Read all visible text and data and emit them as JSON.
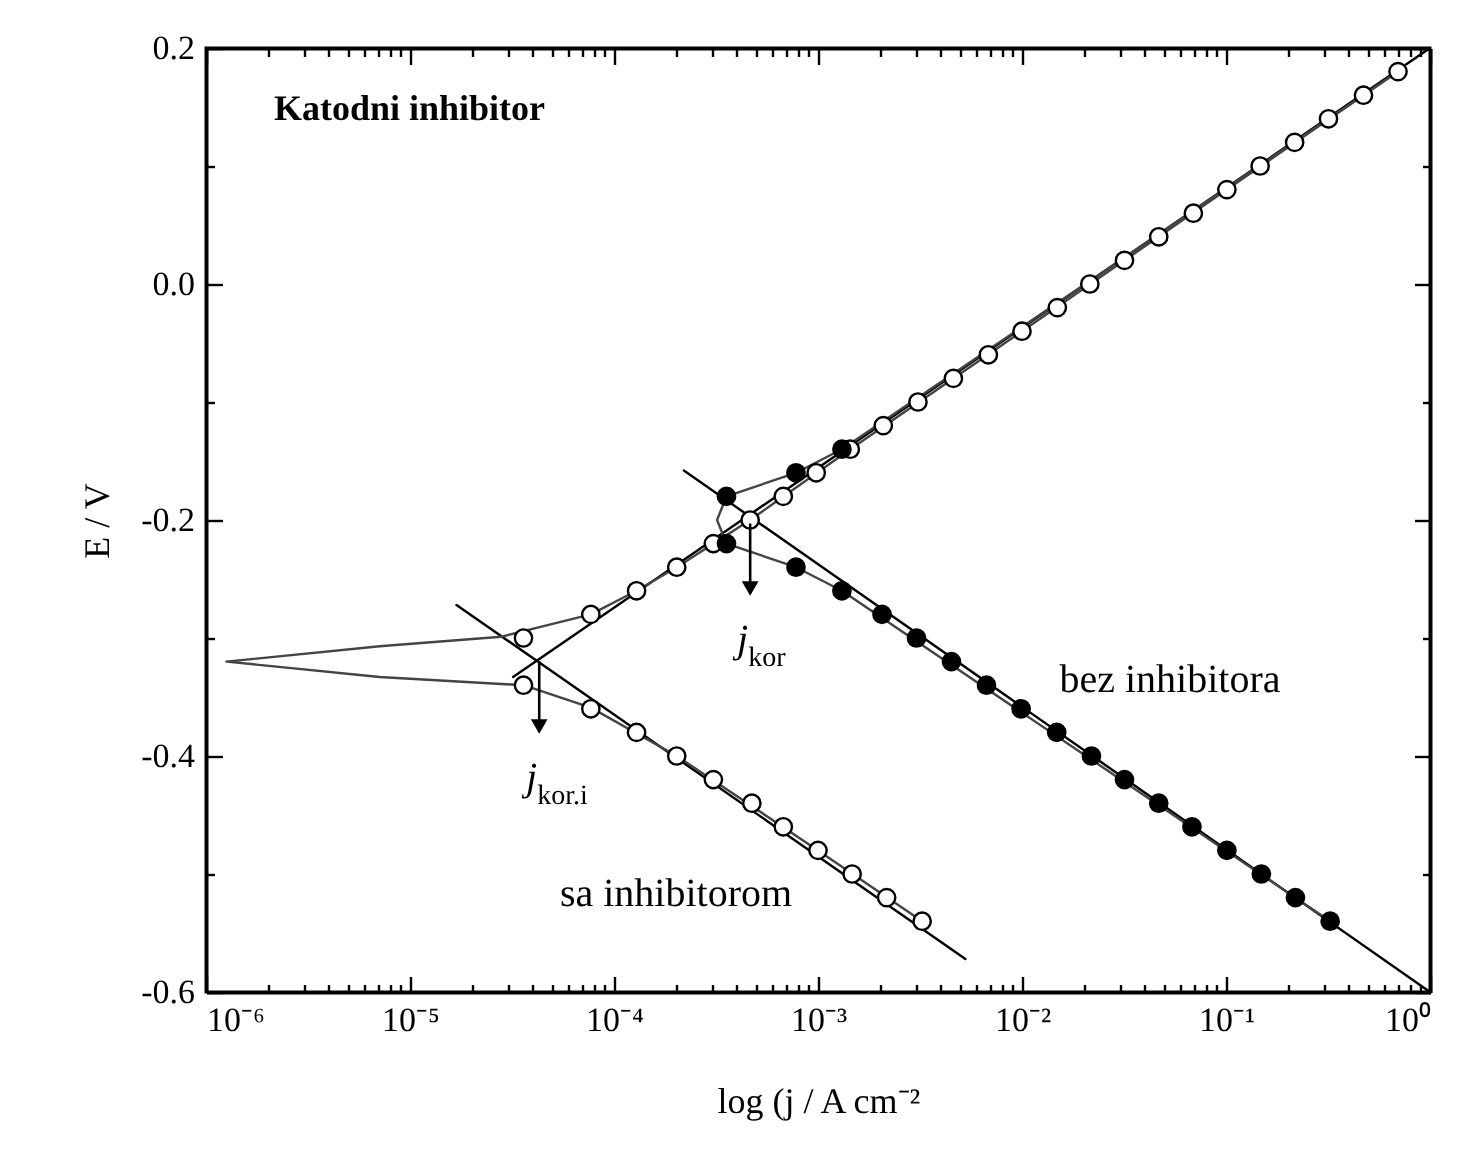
{
  "chart_data": {
    "type": "scatter",
    "title": "Katodni inhibitor",
    "xlabel": "log (j / A cm⁻²",
    "ylabel": "E / V",
    "log": "x",
    "grid": false,
    "xlim": [
      1e-06,
      1
    ],
    "ylim": [
      -0.6,
      0.2
    ],
    "xticks": [
      {
        "value": 1e-06,
        "label": "10⁻⁶"
      },
      {
        "value": 2e-06,
        "label": null
      },
      {
        "value": 3e-06,
        "label": null
      },
      {
        "value": 4e-06,
        "label": null
      },
      {
        "value": 5e-06,
        "label": null
      },
      {
        "value": 6e-06,
        "label": null
      },
      {
        "value": 7e-06,
        "label": null
      },
      {
        "value": 8e-06,
        "label": null
      },
      {
        "value": 9e-06,
        "label": null
      },
      {
        "value": 1e-05,
        "label": "10⁻⁵"
      },
      {
        "value": 2e-05,
        "label": null
      },
      {
        "value": 3e-05,
        "label": null
      },
      {
        "value": 4e-05,
        "label": null
      },
      {
        "value": 5e-05,
        "label": null
      },
      {
        "value": 6e-05,
        "label": null
      },
      {
        "value": 7e-05,
        "label": null
      },
      {
        "value": 8e-05,
        "label": null
      },
      {
        "value": 9e-05,
        "label": null
      },
      {
        "value": 0.0001,
        "label": "10⁻⁴"
      },
      {
        "value": 0.0002,
        "label": null
      },
      {
        "value": 0.0003,
        "label": null
      },
      {
        "value": 0.0004,
        "label": null
      },
      {
        "value": 0.0005,
        "label": null
      },
      {
        "value": 0.0006,
        "label": null
      },
      {
        "value": 0.0007,
        "label": null
      },
      {
        "value": 0.0008,
        "label": null
      },
      {
        "value": 0.0009,
        "label": null
      },
      {
        "value": 0.001,
        "label": "10⁻³"
      },
      {
        "value": 0.002,
        "label": null
      },
      {
        "value": 0.003,
        "label": null
      },
      {
        "value": 0.004,
        "label": null
      },
      {
        "value": 0.005,
        "label": null
      },
      {
        "value": 0.006,
        "label": null
      },
      {
        "value": 0.007,
        "label": null
      },
      {
        "value": 0.008,
        "label": null
      },
      {
        "value": 0.009,
        "label": null
      },
      {
        "value": 0.01,
        "label": "10⁻²"
      },
      {
        "value": 0.02,
        "label": null
      },
      {
        "value": 0.03,
        "label": null
      },
      {
        "value": 0.04,
        "label": null
      },
      {
        "value": 0.05,
        "label": null
      },
      {
        "value": 0.06,
        "label": null
      },
      {
        "value": 0.07,
        "label": null
      },
      {
        "value": 0.08,
        "label": null
      },
      {
        "value": 0.09,
        "label": null
      },
      {
        "value": 0.1,
        "label": "10⁻¹"
      },
      {
        "value": 0.2,
        "label": null
      },
      {
        "value": 0.3,
        "label": null
      },
      {
        "value": 0.4,
        "label": null
      },
      {
        "value": 0.5,
        "label": null
      },
      {
        "value": 0.6,
        "label": null
      },
      {
        "value": 0.7,
        "label": null
      },
      {
        "value": 0.8,
        "label": null
      },
      {
        "value": 0.9,
        "label": null
      },
      {
        "value": 1,
        "label": "10⁰"
      }
    ],
    "yticks": [
      {
        "value": -0.6,
        "label": "-0.6"
      },
      {
        "value": -0.5,
        "label": null
      },
      {
        "value": -0.4,
        "label": "-0.4"
      },
      {
        "value": -0.3,
        "label": null
      },
      {
        "value": -0.2,
        "label": "-0.2"
      },
      {
        "value": -0.1,
        "label": null
      },
      {
        "value": 0,
        "label": "0.0"
      },
      {
        "value": 0.1,
        "label": null
      },
      {
        "value": 0.2,
        "label": "0.2"
      }
    ],
    "annotations": [
      "bez inhibitora",
      "sa inhibitorom",
      {
        "text": "j$_{kor}$",
        "x": 0.000465,
        "y": -0.203
      },
      {
        "text": "j$_{kor.i}$",
        "x": 4.3e-05,
        "y": -0.32
      }
    ],
    "series": [
      {
        "type": "line",
        "color": "#000000",
        "x": [
          3.2e-05,
          1
        ],
        "values": [
          -0.333,
          0.2
        ]
      },
      {
        "type": "line",
        "color": "#000000",
        "x": [
          0.00022,
          1
        ],
        "values": [
          -0.158,
          -0.6
        ]
      },
      {
        "type": "line",
        "color": "#000000",
        "x": [
          1.69e-05,
          0.00528
        ],
        "values": [
          -0.272,
          -0.572
        ]
      },
      {
        "type": "line",
        "color": "#444444",
        "x": [
          0.697,
          0.101,
          0.01,
          0.00144,
          0.000465,
          0.000203,
          0.000129,
          7.7e-05,
          5e-05,
          2.8e-05,
          7.1e-06,
          1.26e-06,
          7.1e-06,
          3.6e-05,
          7.7e-05,
          0.000203,
          0.001,
          0.00324
        ],
        "values": [
          0.18,
          0.08,
          -0.04,
          -0.14,
          -0.2,
          -0.24,
          -0.26,
          -0.28,
          -0.288,
          -0.299,
          -0.307,
          -0.32,
          -0.333,
          -0.34,
          -0.359,
          -0.4,
          -0.48,
          -0.54
        ]
      },
      {
        "type": "line",
        "color": "#444444",
        "x": [
          0.697,
          0.00131,
          0.00078,
          0.000356,
          0.00032,
          0.000356,
          0.00078,
          0.00131,
          0.324
        ],
        "values": [
          0.18,
          -0.14,
          -0.16,
          -0.18,
          -0.2,
          -0.22,
          -0.24,
          -0.26,
          -0.54
        ]
      },
      {
        "marker": "circle-open",
        "color": "#000000",
        "x": [
          7.7e-05,
          0.000129,
          0.000203,
          0.000307,
          0.000465,
          0.000676,
          0.00098,
          0.00144,
          0.00209,
          0.00309,
          0.00461,
          0.00684,
          0.01,
          0.0149,
          0.0215,
          0.0318,
          0.0468,
          0.0692,
          0.101,
          0.147,
          0.217,
          0.318,
          0.472,
          0.697,
          3.6e-05,
          3.6e-05,
          7.7e-05,
          0.000129,
          0.000203,
          0.000307,
          0.000474,
          0.000676,
          0.001,
          0.00147,
          0.00217,
          0.00324
        ],
        "values": [
          -0.28,
          -0.26,
          -0.24,
          -0.22,
          -0.2,
          -0.18,
          -0.16,
          -0.14,
          -0.12,
          -0.1,
          -0.08,
          -0.06,
          -0.04,
          -0.02,
          0,
          0.02,
          0.04,
          0.06,
          0.08,
          0.1,
          0.12,
          0.14,
          0.16,
          0.18,
          -0.3,
          -0.34,
          -0.36,
          -0.38,
          -0.4,
          -0.42,
          -0.44,
          -0.46,
          -0.48,
          -0.5,
          -0.52,
          -0.54
        ]
      },
      {
        "marker": "circle",
        "color": "#000000",
        "x": [
          0.000356,
          0.00078,
          0.00131,
          0.000356,
          0.00078,
          0.00131,
          0.00206,
          0.00304,
          0.00451,
          0.0067,
          0.0099,
          0.0148,
          0.0219,
          0.0318,
          0.0468,
          0.0681,
          0.101,
          0.149,
          0.219,
          0.324
        ],
        "values": [
          -0.18,
          -0.16,
          -0.14,
          -0.22,
          -0.24,
          -0.26,
          -0.28,
          -0.3,
          -0.32,
          -0.34,
          -0.36,
          -0.38,
          -0.4,
          -0.42,
          -0.44,
          -0.46,
          -0.48,
          -0.5,
          -0.52,
          -0.54
        ]
      }
    ]
  }
}
